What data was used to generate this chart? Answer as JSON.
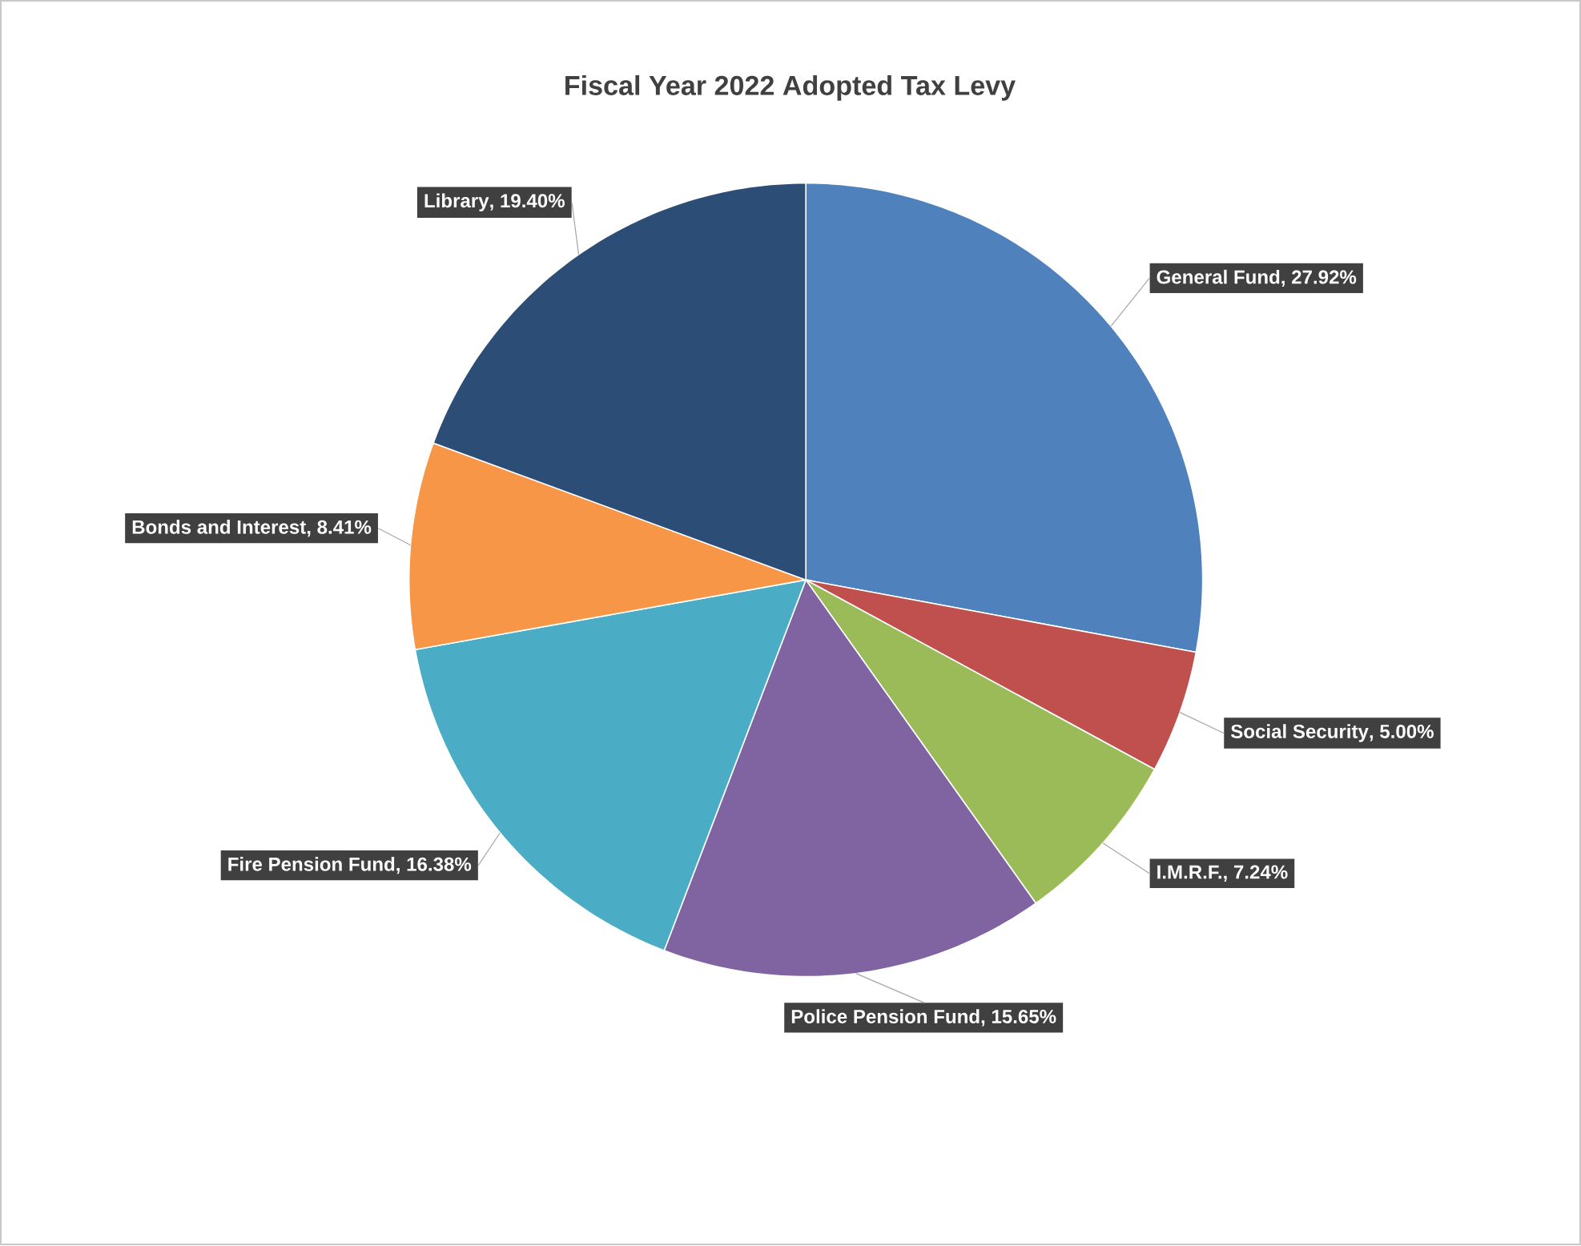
{
  "chart_data": {
    "type": "pie",
    "title": "Fiscal Year 2022 Adopted Tax Levy",
    "categories": [
      "General Fund",
      "Social Security",
      "I.M.R.F.",
      "Police Pension Fund",
      "Fire Pension Fund",
      "Bonds and Interest",
      "Library"
    ],
    "values": [
      27.92,
      5.0,
      7.24,
      15.65,
      16.38,
      8.41,
      19.4
    ],
    "colors": [
      "#4f81bd",
      "#c0504d",
      "#9bbb59",
      "#8064a2",
      "#4bacc6",
      "#f79646",
      "#2c4d75"
    ],
    "value_labels": [
      ", 27.92%",
      ", 5.00%",
      ", 7.24%",
      ", 15.65%",
      ", 16.38%",
      ", 8.41%",
      ", 19.40%"
    ]
  }
}
